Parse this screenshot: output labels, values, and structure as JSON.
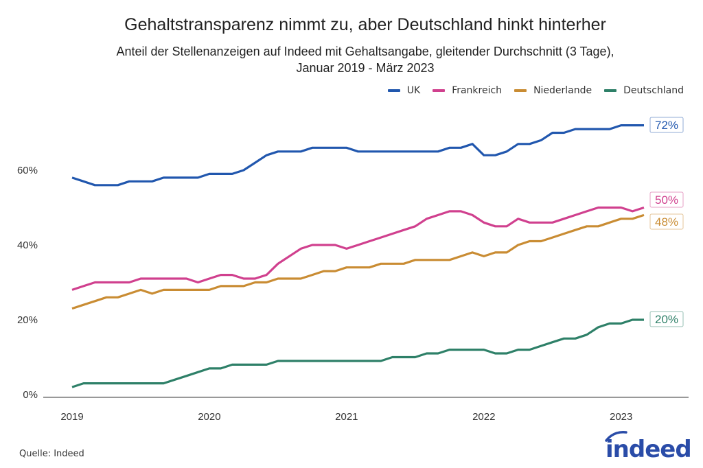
{
  "chart_data": {
    "type": "line",
    "title": "Gehaltstransparenz nimmt zu, aber Deutschland hinkt hinterher",
    "subtitle": [
      "Anteil der Stellenanzeigen auf Indeed mit Gehaltsangabe, gleitender Durchschnitt (3 Tage),",
      "Januar 2019 - März 2023"
    ],
    "xlabel": "",
    "ylabel": "",
    "x_start": "2019-01",
    "x_end": "2023-03",
    "x_frequency": "monthly",
    "x_ticks": [
      "2019",
      "2020",
      "2021",
      "2022",
      "2023"
    ],
    "y_ticks": [
      "0%",
      "20%",
      "40%",
      "60%"
    ],
    "y_tick_values": [
      0,
      20,
      40,
      60
    ],
    "ylim": [
      0,
      75
    ],
    "grid": false,
    "legend_position": "top-right",
    "series": [
      {
        "name": "UK",
        "color": "#2157ae",
        "end_label": "72%",
        "values": [
          58,
          57,
          56,
          56,
          56,
          57,
          57,
          57,
          58,
          58,
          58,
          58,
          59,
          59,
          59,
          60,
          62,
          64,
          65,
          65,
          65,
          66,
          66,
          66,
          66,
          65,
          65,
          65,
          65,
          65,
          65,
          65,
          65,
          66,
          66,
          67,
          64,
          64,
          65,
          67,
          67,
          68,
          70,
          70,
          71,
          71,
          71,
          71,
          72,
          72,
          72
        ]
      },
      {
        "name": "Frankreich",
        "color": "#d0408e",
        "end_label": "50%",
        "values": [
          28,
          29,
          30,
          30,
          30,
          30,
          31,
          31,
          31,
          31,
          31,
          30,
          31,
          32,
          32,
          31,
          31,
          32,
          35,
          37,
          39,
          40,
          40,
          40,
          39,
          40,
          41,
          42,
          43,
          44,
          45,
          47,
          48,
          49,
          49,
          48,
          46,
          45,
          45,
          47,
          46,
          46,
          46,
          47,
          48,
          49,
          50,
          50,
          50,
          49,
          50
        ]
      },
      {
        "name": "Niederlande",
        "color": "#c98c33",
        "end_label": "48%",
        "values": [
          23,
          24,
          25,
          26,
          26,
          27,
          28,
          27,
          28,
          28,
          28,
          28,
          28,
          29,
          29,
          29,
          30,
          30,
          31,
          31,
          31,
          32,
          33,
          33,
          34,
          34,
          34,
          35,
          35,
          35,
          36,
          36,
          36,
          36,
          37,
          38,
          37,
          38,
          38,
          40,
          41,
          41,
          42,
          43,
          44,
          45,
          45,
          46,
          47,
          47,
          48
        ]
      },
      {
        "name": "Deutschland",
        "color": "#2e8068",
        "end_label": "20%",
        "values": [
          2,
          3,
          3,
          3,
          3,
          3,
          3,
          3,
          3,
          4,
          5,
          6,
          7,
          7,
          8,
          8,
          8,
          8,
          9,
          9,
          9,
          9,
          9,
          9,
          9,
          9,
          9,
          9,
          10,
          10,
          10,
          11,
          11,
          12,
          12,
          12,
          12,
          11,
          11,
          12,
          12,
          13,
          14,
          15,
          15,
          16,
          18,
          19,
          19,
          20,
          20
        ]
      }
    ]
  },
  "source": "Quelle: Indeed",
  "logo_text": "indeed",
  "logo_color": "#2a4ca8"
}
